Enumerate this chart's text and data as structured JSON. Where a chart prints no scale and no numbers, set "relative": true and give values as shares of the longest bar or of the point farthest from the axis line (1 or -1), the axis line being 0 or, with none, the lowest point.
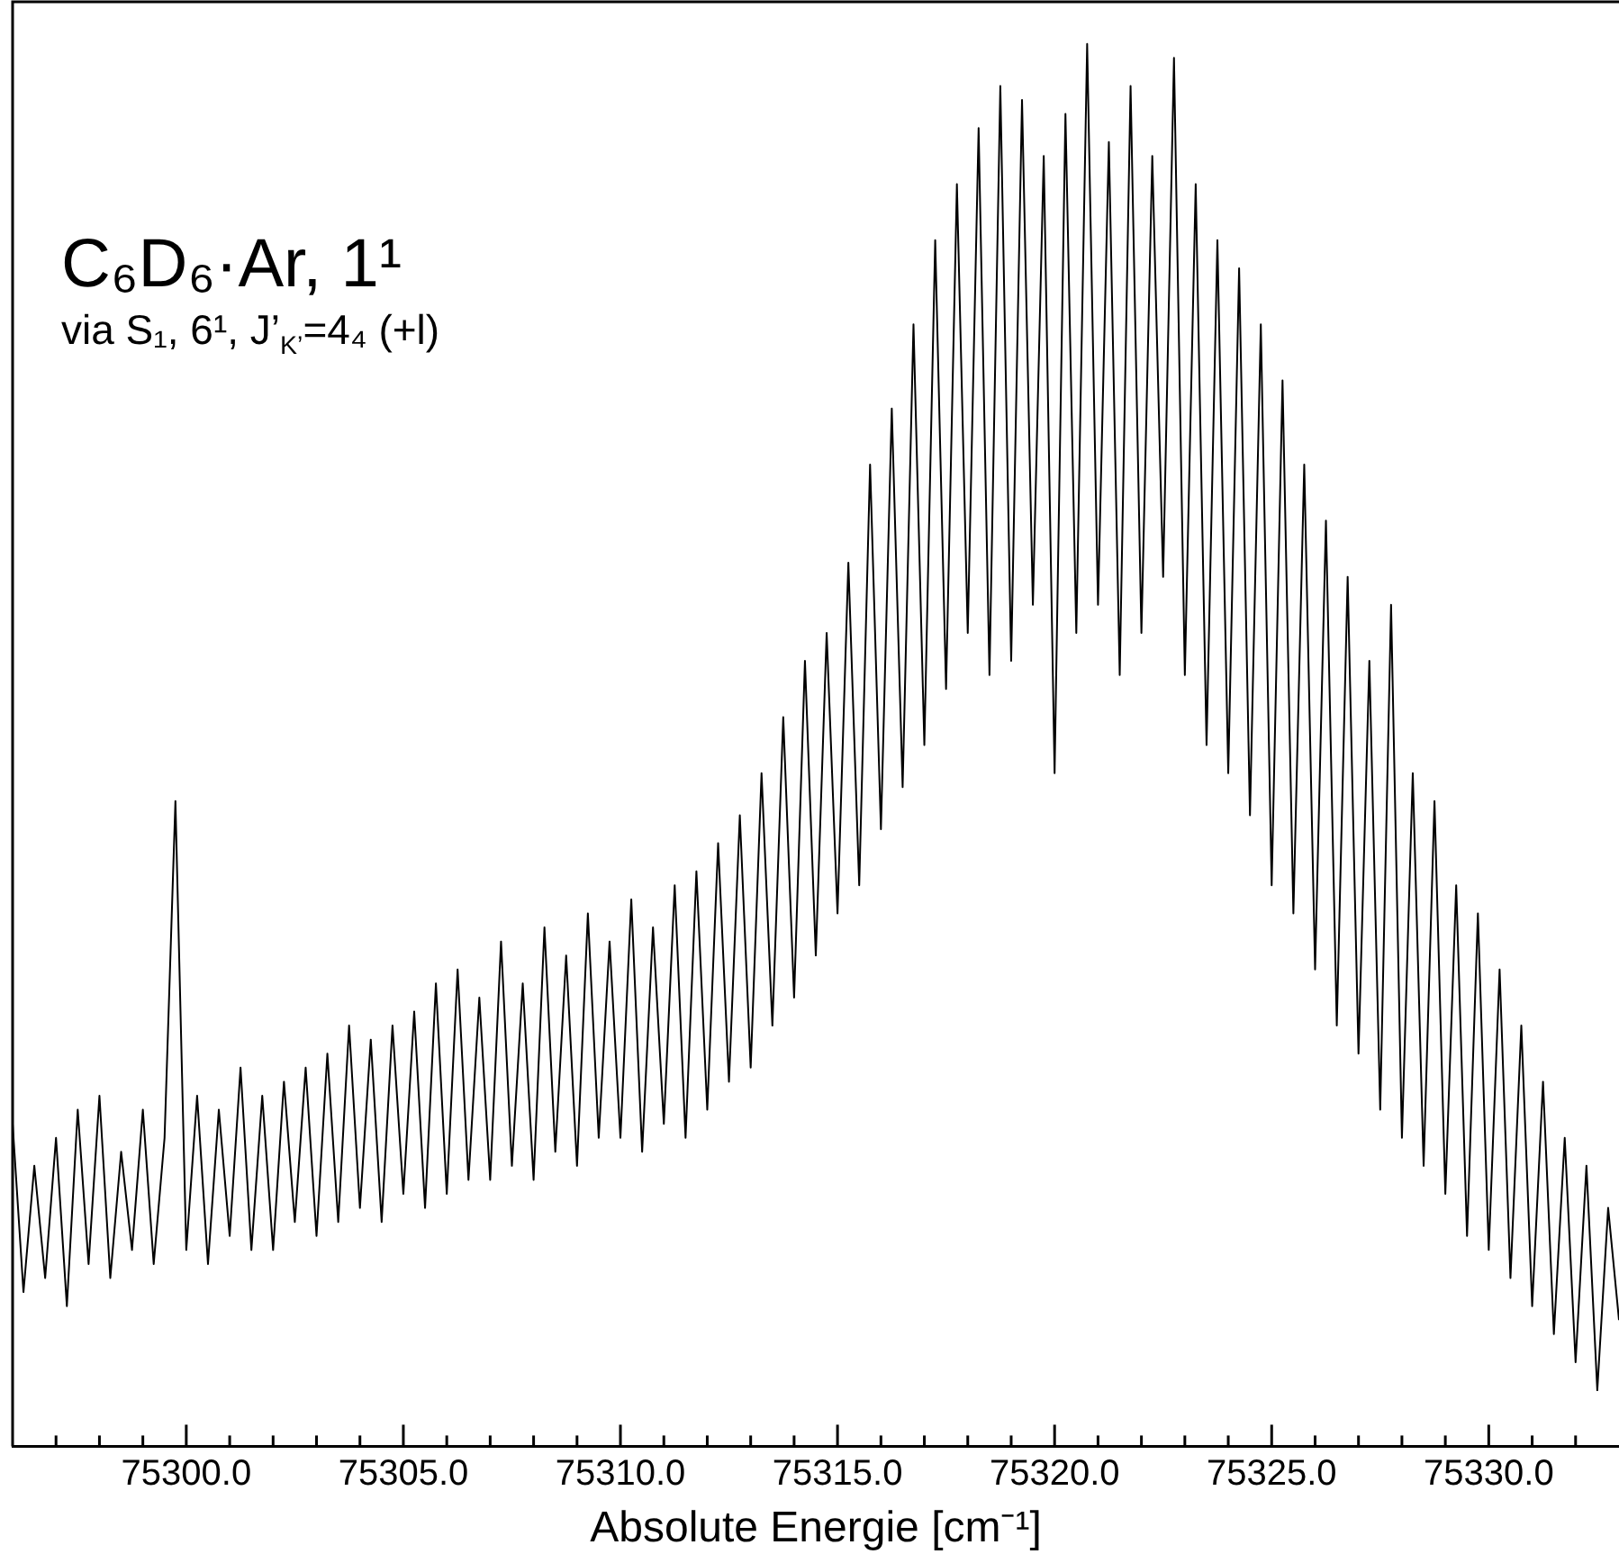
{
  "chart_data": {
    "type": "line",
    "title": "C₆D₆·Ar, 1¹",
    "subtitle": "via S₁, 6¹, J’$_{K’}$=4₄ (+l)",
    "xlabel": "Absolute Energie [cm⁻¹]",
    "relative": true,
    "legend": false,
    "grid": false,
    "marker": "none",
    "line_style": "solid",
    "xlim": [
      75296,
      75333
    ],
    "xticks": [
      {
        "value": 75297,
        "label": null
      },
      {
        "value": 75298,
        "label": null
      },
      {
        "value": 75299,
        "label": null
      },
      {
        "value": 75300,
        "label": "75300.0"
      },
      {
        "value": 75301,
        "label": null
      },
      {
        "value": 75302,
        "label": null
      },
      {
        "value": 75303,
        "label": null
      },
      {
        "value": 75304,
        "label": null
      },
      {
        "value": 75305,
        "label": "75305.0"
      },
      {
        "value": 75306,
        "label": null
      },
      {
        "value": 75307,
        "label": null
      },
      {
        "value": 75308,
        "label": null
      },
      {
        "value": 75309,
        "label": null
      },
      {
        "value": 75310,
        "label": "75310.0"
      },
      {
        "value": 75311,
        "label": null
      },
      {
        "value": 75312,
        "label": null
      },
      {
        "value": 75313,
        "label": null
      },
      {
        "value": 75314,
        "label": null
      },
      {
        "value": 75315,
        "label": "75315.0"
      },
      {
        "value": 75316,
        "label": null
      },
      {
        "value": 75317,
        "label": null
      },
      {
        "value": 75318,
        "label": null
      },
      {
        "value": 75319,
        "label": null
      },
      {
        "value": 75320,
        "label": "75320.0"
      },
      {
        "value": 75321,
        "label": null
      },
      {
        "value": 75322,
        "label": null
      },
      {
        "value": 75323,
        "label": null
      },
      {
        "value": 75324,
        "label": null
      },
      {
        "value": 75325,
        "label": "75325.0"
      },
      {
        "value": 75326,
        "label": null
      },
      {
        "value": 75327,
        "label": null
      },
      {
        "value": 75328,
        "label": null
      },
      {
        "value": 75329,
        "label": null
      },
      {
        "value": 75330,
        "label": "75330.0"
      },
      {
        "value": 75331,
        "label": null
      },
      {
        "value": 75332,
        "label": null
      }
    ],
    "series": [
      {
        "color": "#000000",
        "x": [
          75296,
          75296.25,
          75296.5,
          75296.75,
          75297,
          75297.25,
          75297.5,
          75297.75,
          75298,
          75298.25,
          75298.5,
          75298.75,
          75299,
          75299.25,
          75299.5,
          75299.75,
          75300,
          75300.25,
          75300.5,
          75300.75,
          75301,
          75301.25,
          75301.5,
          75301.75,
          75302,
          75302.25,
          75302.5,
          75302.75,
          75303,
          75303.25,
          75303.5,
          75303.75,
          75304,
          75304.25,
          75304.5,
          75304.75,
          75305,
          75305.25,
          75305.5,
          75305.75,
          75306,
          75306.25,
          75306.5,
          75306.75,
          75307,
          75307.25,
          75307.5,
          75307.75,
          75308,
          75308.25,
          75308.5,
          75308.75,
          75309,
          75309.25,
          75309.5,
          75309.75,
          75310,
          75310.25,
          75310.5,
          75310.75,
          75311,
          75311.25,
          75311.5,
          75311.75,
          75312,
          75312.25,
          75312.5,
          75312.75,
          75313,
          75313.25,
          75313.5,
          75313.75,
          75314,
          75314.25,
          75314.5,
          75314.75,
          75315,
          75315.25,
          75315.5,
          75315.75,
          75316,
          75316.25,
          75316.5,
          75316.75,
          75317,
          75317.25,
          75317.5,
          75317.75,
          75318,
          75318.25,
          75318.5,
          75318.75,
          75319,
          75319.25,
          75319.5,
          75319.75,
          75320,
          75320.25,
          75320.5,
          75320.75,
          75321,
          75321.25,
          75321.5,
          75321.75,
          75322,
          75322.25,
          75322.5,
          75322.75,
          75323,
          75323.25,
          75323.5,
          75323.75,
          75324,
          75324.25,
          75324.5,
          75324.75,
          75325,
          75325.25,
          75325.5,
          75325.75,
          75326,
          75326.25,
          75326.5,
          75326.75,
          75327,
          75327.25,
          75327.5,
          75327.75,
          75328,
          75328.25,
          75328.5,
          75328.75,
          75329,
          75329.25,
          75329.5,
          75329.75,
          75330,
          75330.25,
          75330.5,
          75330.75,
          75331,
          75331.25,
          75331.5,
          75331.75,
          75332,
          75332.25,
          75332.5,
          75332.75,
          75333
        ],
        "values": [
          0.23,
          0.11,
          0.2,
          0.12,
          0.22,
          0.1,
          0.24,
          0.13,
          0.25,
          0.12,
          0.21,
          0.14,
          0.24,
          0.13,
          0.22,
          0.46,
          0.14,
          0.25,
          0.13,
          0.24,
          0.15,
          0.27,
          0.14,
          0.25,
          0.14,
          0.26,
          0.16,
          0.27,
          0.15,
          0.28,
          0.16,
          0.3,
          0.17,
          0.29,
          0.16,
          0.3,
          0.18,
          0.31,
          0.17,
          0.33,
          0.18,
          0.34,
          0.19,
          0.32,
          0.19,
          0.36,
          0.2,
          0.33,
          0.19,
          0.37,
          0.21,
          0.35,
          0.2,
          0.38,
          0.22,
          0.36,
          0.22,
          0.39,
          0.21,
          0.37,
          0.23,
          0.4,
          0.22,
          0.41,
          0.24,
          0.43,
          0.26,
          0.45,
          0.27,
          0.48,
          0.3,
          0.52,
          0.32,
          0.56,
          0.35,
          0.58,
          0.38,
          0.63,
          0.4,
          0.7,
          0.44,
          0.74,
          0.47,
          0.8,
          0.5,
          0.86,
          0.54,
          0.9,
          0.58,
          0.94,
          0.55,
          0.97,
          0.56,
          0.96,
          0.6,
          0.92,
          0.48,
          0.95,
          0.58,
          1.0,
          0.6,
          0.93,
          0.55,
          0.97,
          0.58,
          0.92,
          0.62,
          0.99,
          0.55,
          0.9,
          0.5,
          0.86,
          0.48,
          0.84,
          0.45,
          0.8,
          0.4,
          0.76,
          0.38,
          0.7,
          0.34,
          0.66,
          0.3,
          0.62,
          0.28,
          0.56,
          0.24,
          0.6,
          0.22,
          0.48,
          0.2,
          0.46,
          0.18,
          0.4,
          0.15,
          0.38,
          0.14,
          0.34,
          0.12,
          0.3,
          0.1,
          0.26,
          0.08,
          0.22,
          0.06,
          0.2,
          0.04,
          0.17,
          0.09
        ]
      }
    ]
  }
}
